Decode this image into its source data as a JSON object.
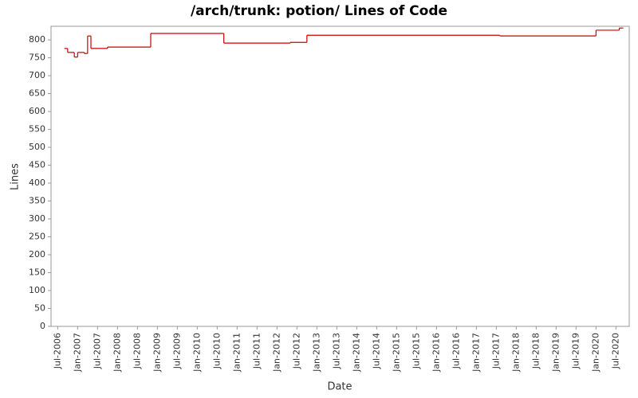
{
  "chart_data": {
    "type": "step",
    "title": "/arch/trunk: potion/ Lines of Code",
    "x_label": "Date",
    "y_label": "Lines",
    "color": "#cc0000",
    "x": [
      "2006-09",
      "2006-10",
      "2006-12",
      "2007-01",
      "2007-03",
      "2007-04",
      "2007-05",
      "2007-10",
      "2008-11",
      "2010-09",
      "2012-05",
      "2012-10",
      "2017-08",
      "2020-01",
      "2020-08",
      "2020-09"
    ],
    "values": [
      776,
      765,
      752,
      765,
      762,
      811,
      776,
      780,
      818,
      791,
      793,
      813,
      811,
      827,
      833,
      833
    ],
    "xlim": [
      "2006-05",
      "2020-11"
    ],
    "xticks": [
      {
        "value": "2006-07",
        "label": "Jul-2006"
      },
      {
        "value": "2007-01",
        "label": "Jan-2007"
      },
      {
        "value": "2007-07",
        "label": "Jul-2007"
      },
      {
        "value": "2008-01",
        "label": "Jan-2008"
      },
      {
        "value": "2008-07",
        "label": "Jul-2008"
      },
      {
        "value": "2009-01",
        "label": "Jan-2009"
      },
      {
        "value": "2009-07",
        "label": "Jul-2009"
      },
      {
        "value": "2010-01",
        "label": "Jan-2010"
      },
      {
        "value": "2010-07",
        "label": "Jul-2010"
      },
      {
        "value": "2011-01",
        "label": "Jan-2011"
      },
      {
        "value": "2011-07",
        "label": "Jul-2011"
      },
      {
        "value": "2012-01",
        "label": "Jan-2012"
      },
      {
        "value": "2012-07",
        "label": "Jul-2012"
      },
      {
        "value": "2013-01",
        "label": "Jan-2013"
      },
      {
        "value": "2013-07",
        "label": "Jul-2013"
      },
      {
        "value": "2014-01",
        "label": "Jan-2014"
      },
      {
        "value": "2014-07",
        "label": "Jul-2014"
      },
      {
        "value": "2015-01",
        "label": "Jan-2015"
      },
      {
        "value": "2015-07",
        "label": "Jul-2015"
      },
      {
        "value": "2016-01",
        "label": "Jan-2016"
      },
      {
        "value": "2016-07",
        "label": "Jul-2016"
      },
      {
        "value": "2017-01",
        "label": "Jan-2017"
      },
      {
        "value": "2017-07",
        "label": "Jul-2017"
      },
      {
        "value": "2018-01",
        "label": "Jan-2018"
      },
      {
        "value": "2018-07",
        "label": "Jul-2018"
      },
      {
        "value": "2019-01",
        "label": "Jan-2019"
      },
      {
        "value": "2019-07",
        "label": "Jul-2019"
      },
      {
        "value": "2020-01",
        "label": "Jan-2020"
      },
      {
        "value": "2020-07",
        "label": "Jul-2020"
      }
    ],
    "ylim": [
      0,
      838
    ],
    "yticks": [
      0,
      50,
      100,
      150,
      200,
      250,
      300,
      350,
      400,
      450,
      500,
      550,
      600,
      650,
      700,
      750,
      800
    ],
    "grid": false
  }
}
